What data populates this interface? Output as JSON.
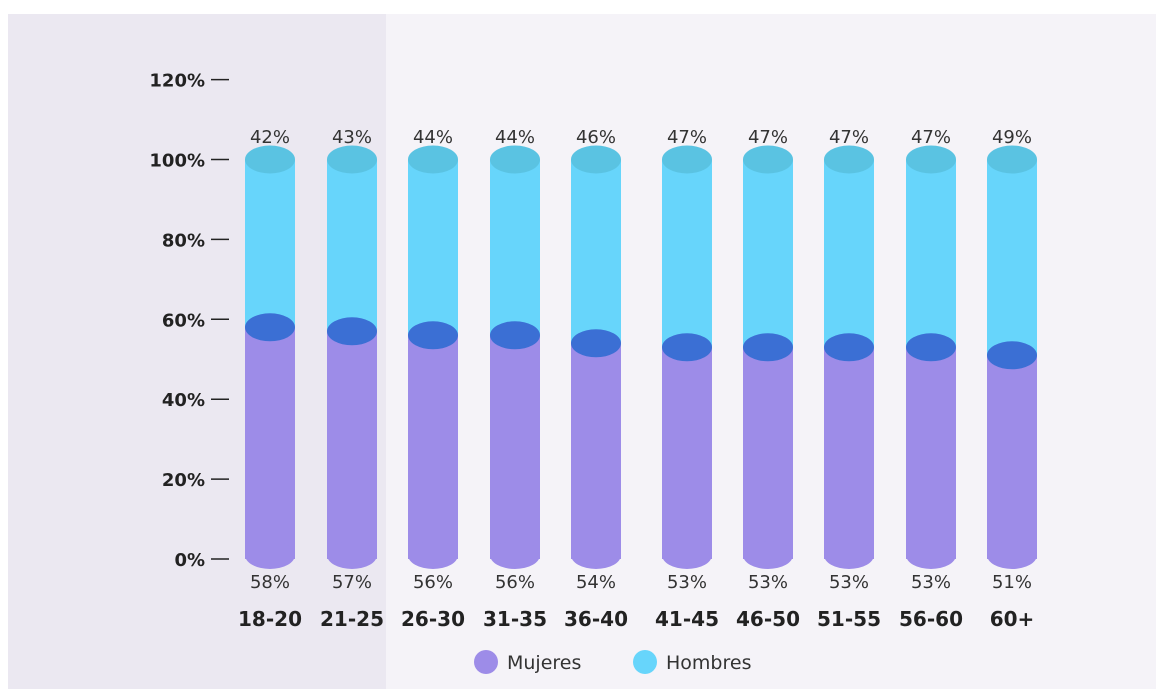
{
  "chart_data": {
    "type": "bar",
    "stacked": true,
    "orientation": "vertical",
    "style": "cylinder",
    "categories": [
      "18-20",
      "21-25",
      "26-30",
      "31-35",
      "36-40",
      "41-45",
      "46-50",
      "51-55",
      "56-60",
      "60+"
    ],
    "series": [
      {
        "name": "Mujeres",
        "values": [
          58,
          57,
          56,
          56,
          54,
          53,
          53,
          53,
          53,
          51
        ],
        "labels": [
          "58%",
          "57%",
          "56%",
          "56%",
          "54%",
          "53%",
          "53%",
          "53%",
          "53%",
          "51%"
        ]
      },
      {
        "name": "Hombres",
        "values": [
          42,
          43,
          44,
          44,
          46,
          47,
          47,
          47,
          47,
          49
        ],
        "labels": [
          "42%",
          "43%",
          "44%",
          "44%",
          "46%",
          "47%",
          "47%",
          "47%",
          "47%",
          "49%"
        ]
      }
    ],
    "y_ticks": [
      "0%",
      "20%",
      "40%",
      "60%",
      "80%",
      "100%",
      "120%"
    ],
    "ylim": [
      0,
      120
    ],
    "grid": false,
    "legend_position": "bottom-center",
    "colors": {
      "mujeres": "#9d8ce8",
      "mujeres_top": "#3b6fd4",
      "hombres": "#67d5fb",
      "hombres_top": "#5ac3e2",
      "panel": "#f5f3f8",
      "panel_shade": "#ebe8f1",
      "axis": "#222222"
    }
  }
}
